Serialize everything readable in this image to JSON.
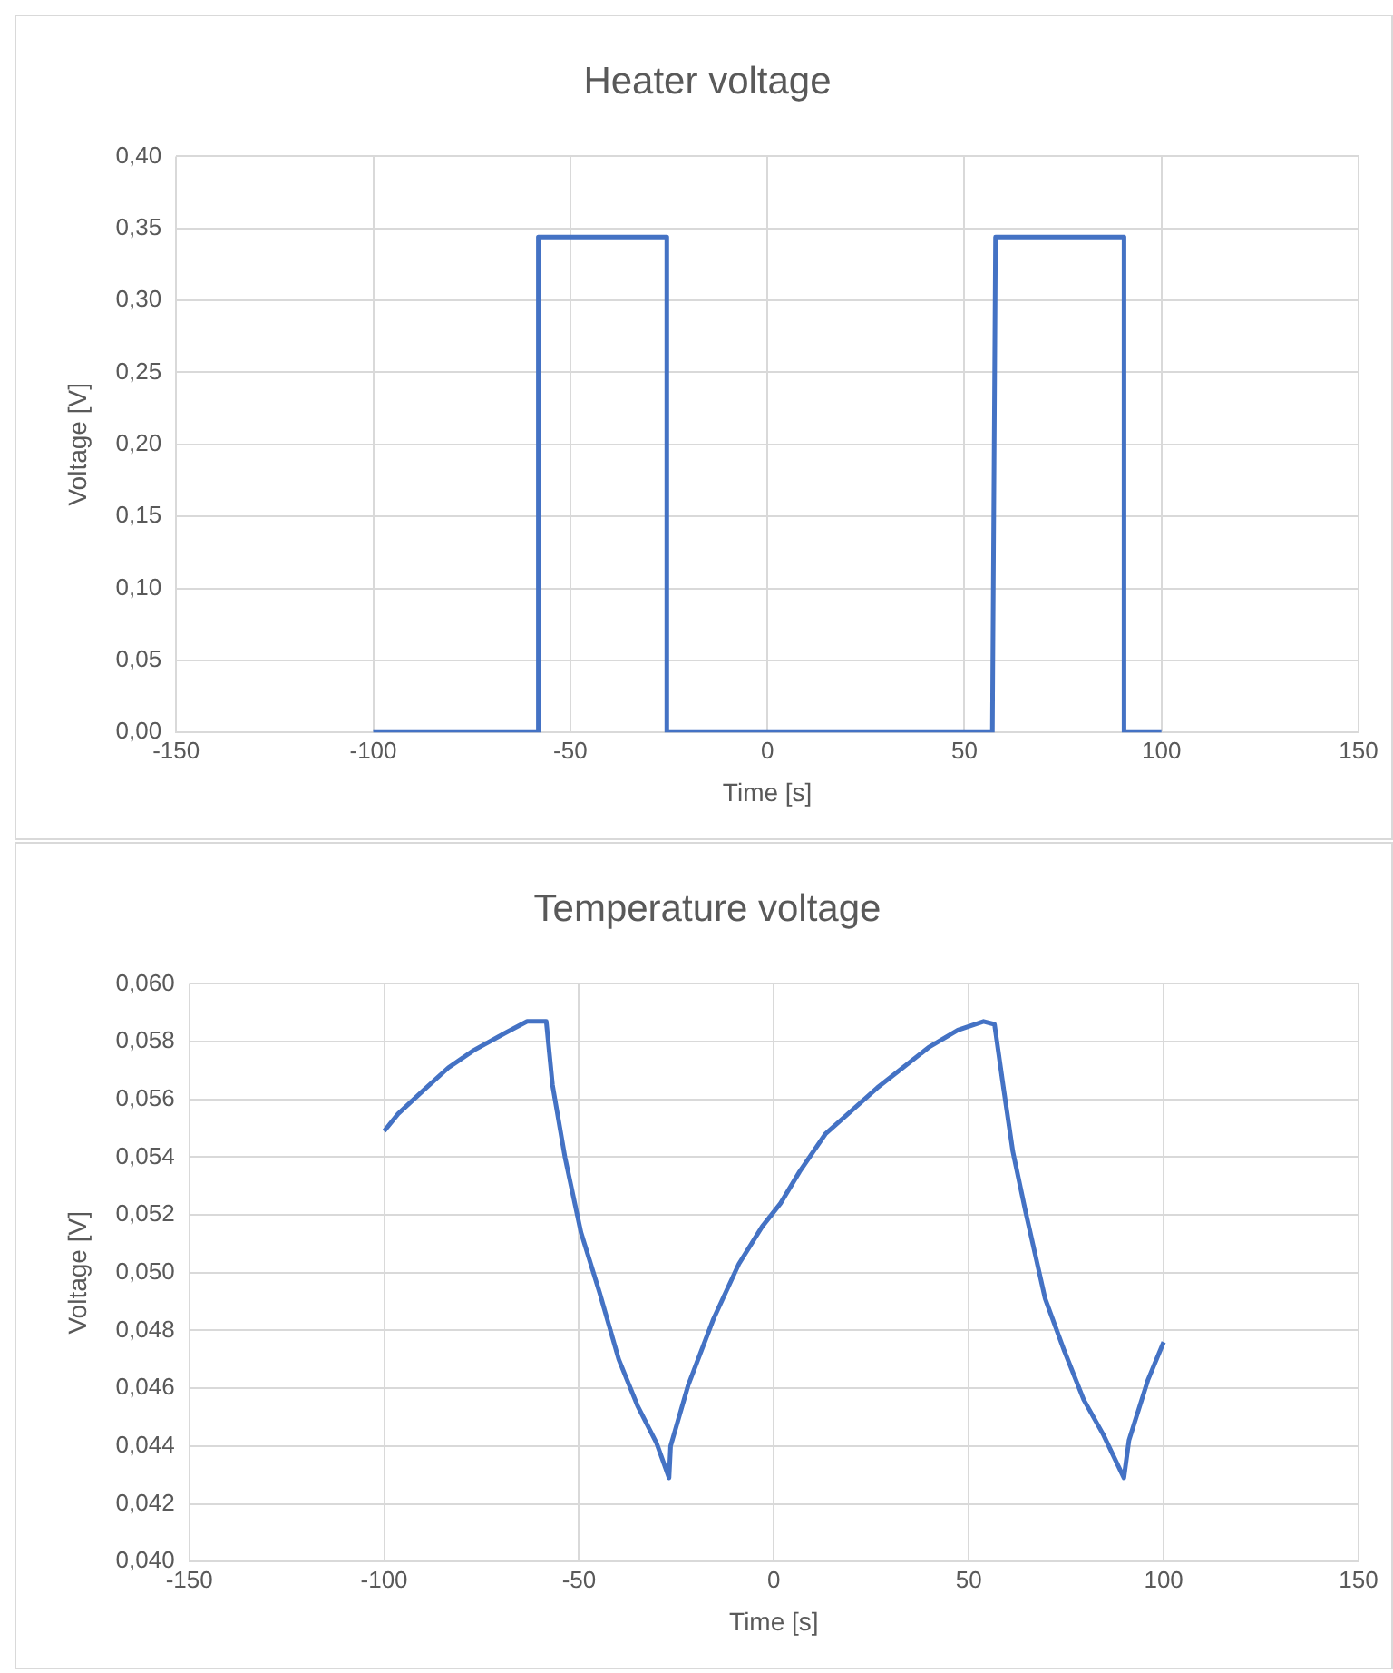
{
  "chart_data": [
    {
      "type": "line",
      "title": "Heater voltage",
      "xlabel": "Time [s]",
      "ylabel": "Voltage [V]",
      "marker": "none",
      "grid": true,
      "legend": false,
      "series": [
        {
          "color": "#4472c4",
          "x": [
            -100,
            -58.1,
            -58.1,
            -25.5,
            -25.5,
            57.1,
            57.9,
            90.5,
            90.5,
            100
          ],
          "values": [
            0,
            0,
            0.344,
            0.344,
            0,
            0,
            0.344,
            0.344,
            0,
            0
          ]
        }
      ],
      "xlim": [
        -150,
        150
      ],
      "xticks": [
        -150,
        -100,
        -50,
        0,
        50,
        100,
        150
      ],
      "ylim": [
        0,
        0.4
      ],
      "yticks": [
        {
          "value": 0,
          "label": "0,00"
        },
        {
          "value": 0.05,
          "label": "0,05"
        },
        {
          "value": 0.1,
          "label": "0,10"
        },
        {
          "value": 0.15,
          "label": "0,15"
        },
        {
          "value": 0.2,
          "label": "0,20"
        },
        {
          "value": 0.25,
          "label": "0,25"
        },
        {
          "value": 0.3,
          "label": "0,30"
        },
        {
          "value": 0.35,
          "label": "0,35"
        },
        {
          "value": 0.4,
          "label": "0,40"
        }
      ]
    },
    {
      "type": "line",
      "title": "Temperature voltage",
      "xlabel": "Time [s]",
      "ylabel": "Voltage [V]",
      "marker": "none",
      "grid": true,
      "legend": false,
      "series": [
        {
          "color": "#4472c4",
          "x": [
            -100,
            -96.4,
            -90,
            -83.5,
            -77,
            -68.9,
            -63.3,
            -58.4,
            -56.8,
            -53.6,
            -49.5,
            -44.7,
            -39.8,
            -35,
            -30.1,
            -26.9,
            -26.5,
            -22,
            -15.5,
            -9,
            -3,
            1.7,
            6.6,
            13.2,
            19.9,
            26.5,
            33.1,
            39.7,
            47.2,
            53.8,
            56.6,
            58.8,
            61.3,
            64.6,
            69.6,
            74.5,
            79.5,
            84.5,
            89.8,
            91.1,
            96,
            100
          ],
          "values": [
            0.0549,
            0.0555,
            0.0563,
            0.0571,
            0.0577,
            0.0583,
            0.0587,
            0.0587,
            0.0565,
            0.054,
            0.0514,
            0.0493,
            0.047,
            0.0454,
            0.0441,
            0.0429,
            0.044,
            0.0461,
            0.0484,
            0.0503,
            0.0516,
            0.0524,
            0.0535,
            0.0548,
            0.0556,
            0.0564,
            0.0571,
            0.0578,
            0.0584,
            0.0587,
            0.0586,
            0.0565,
            0.0542,
            0.0521,
            0.0491,
            0.0473,
            0.0456,
            0.0444,
            0.0429,
            0.0442,
            0.0463,
            0.0476
          ]
        }
      ],
      "xlim": [
        -150,
        150
      ],
      "xticks": [
        -150,
        -100,
        -50,
        0,
        50,
        100,
        150
      ],
      "ylim": [
        0.04,
        0.06
      ],
      "yticks": [
        {
          "value": 0.04,
          "label": "0,040"
        },
        {
          "value": 0.042,
          "label": "0,042"
        },
        {
          "value": 0.044,
          "label": "0,044"
        },
        {
          "value": 0.046,
          "label": "0,046"
        },
        {
          "value": 0.048,
          "label": "0,048"
        },
        {
          "value": 0.05,
          "label": "0,050"
        },
        {
          "value": 0.052,
          "label": "0,052"
        },
        {
          "value": 0.054,
          "label": "0,054"
        },
        {
          "value": 0.056,
          "label": "0,056"
        },
        {
          "value": 0.058,
          "label": "0,058"
        },
        {
          "value": 0.06,
          "label": "0,060"
        }
      ]
    }
  ]
}
